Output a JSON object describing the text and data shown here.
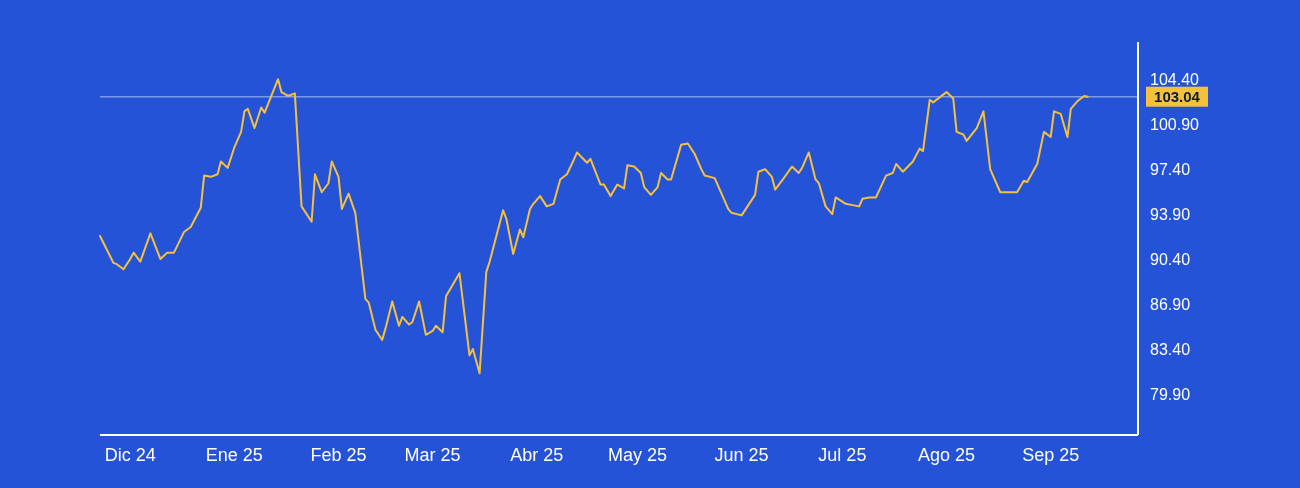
{
  "chart_data": {
    "type": "line",
    "x": [
      "2024-11-22",
      "2024-11-26",
      "2024-11-27",
      "2024-11-29",
      "2024-12-01",
      "2024-12-02",
      "2024-12-04",
      "2024-12-07",
      "2024-12-10",
      "2024-12-12",
      "2024-12-14",
      "2024-12-17",
      "2024-12-19",
      "2024-12-22",
      "2024-12-23",
      "2024-12-25",
      "2024-12-27",
      "2024-12-28",
      "2024-12-30",
      "2025-01-01",
      "2025-01-03",
      "2025-01-04",
      "2025-01-05",
      "2025-01-07",
      "2025-01-09",
      "2025-01-10",
      "2025-01-14",
      "2025-01-15",
      "2025-01-17",
      "2025-01-19",
      "2025-01-21",
      "2025-01-24",
      "2025-01-25",
      "2025-01-27",
      "2025-01-29",
      "2025-01-30",
      "2025-02-01",
      "2025-02-02",
      "2025-02-04",
      "2025-02-06",
      "2025-02-09",
      "2025-02-10",
      "2025-02-12",
      "2025-02-14",
      "2025-02-15",
      "2025-02-17",
      "2025-02-19",
      "2025-02-20",
      "2025-02-22",
      "2025-02-23",
      "2025-02-25",
      "2025-02-27",
      "2025-03-01",
      "2025-03-02",
      "2025-03-04",
      "2025-03-05",
      "2025-03-07",
      "2025-03-09",
      "2025-03-12",
      "2025-03-13",
      "2025-03-15",
      "2025-03-17",
      "2025-03-18",
      "2025-03-22",
      "2025-03-23",
      "2025-03-25",
      "2025-03-27",
      "2025-03-28",
      "2025-03-30",
      "2025-03-31",
      "2025-04-02",
      "2025-04-04",
      "2025-04-06",
      "2025-04-08",
      "2025-04-10",
      "2025-04-12",
      "2025-04-13",
      "2025-04-16",
      "2025-04-17",
      "2025-04-20",
      "2025-04-21",
      "2025-04-23",
      "2025-04-25",
      "2025-04-27",
      "2025-04-28",
      "2025-04-30",
      "2025-05-02",
      "2025-05-03",
      "2025-05-05",
      "2025-05-07",
      "2025-05-08",
      "2025-05-10",
      "2025-05-11",
      "2025-05-14",
      "2025-05-16",
      "2025-05-18",
      "2025-05-20",
      "2025-05-21",
      "2025-05-24",
      "2025-05-28",
      "2025-05-29",
      "2025-06-01",
      "2025-06-05",
      "2025-06-06",
      "2025-06-08",
      "2025-06-10",
      "2025-06-11",
      "2025-06-13",
      "2025-06-16",
      "2025-06-18",
      "2025-06-19",
      "2025-06-21",
      "2025-06-23",
      "2025-06-24",
      "2025-06-26",
      "2025-06-28",
      "2025-06-29",
      "2025-07-02",
      "2025-07-04",
      "2025-07-06",
      "2025-07-07",
      "2025-07-09",
      "2025-07-11",
      "2025-07-14",
      "2025-07-16",
      "2025-07-17",
      "2025-07-19",
      "2025-07-22",
      "2025-07-24",
      "2025-07-25",
      "2025-07-27",
      "2025-07-28",
      "2025-08-01",
      "2025-08-03",
      "2025-08-04",
      "2025-08-06",
      "2025-08-07",
      "2025-08-10",
      "2025-08-12",
      "2025-08-14",
      "2025-08-17",
      "2025-08-22",
      "2025-08-24",
      "2025-08-25",
      "2025-08-28",
      "2025-08-30",
      "2025-09-01",
      "2025-09-02",
      "2025-09-04",
      "2025-09-06",
      "2025-09-07",
      "2025-09-09",
      "2025-09-11",
      "2025-09-12"
    ],
    "series": [
      {
        "color": "#f5c13d",
        "values": [
          92.2,
          90.1,
          90.0,
          89.6,
          90.4,
          90.9,
          90.2,
          92.4,
          90.4,
          90.9,
          90.9,
          92.5,
          92.9,
          94.4,
          96.9,
          96.8,
          97.0,
          98.0,
          97.5,
          99.1,
          100.3,
          101.9,
          102.1,
          100.6,
          102.2,
          101.8,
          104.4,
          103.4,
          103.1,
          103.3,
          94.5,
          93.3,
          97.0,
          95.6,
          96.3,
          98.0,
          96.8,
          94.3,
          95.5,
          94.0,
          87.3,
          87.0,
          84.9,
          84.1,
          85.0,
          87.1,
          85.2,
          85.9,
          85.3,
          85.5,
          87.1,
          84.5,
          84.8,
          85.2,
          84.7,
          87.5,
          88.4,
          89.3,
          82.9,
          83.4,
          81.5,
          89.4,
          90.2,
          94.2,
          93.5,
          90.8,
          92.7,
          92.1,
          94.3,
          94.7,
          95.3,
          94.5,
          94.7,
          96.6,
          97.0,
          98.1,
          98.7,
          97.9,
          98.2,
          96.2,
          96.2,
          95.3,
          96.2,
          95.9,
          97.7,
          97.6,
          97.1,
          96.0,
          95.4,
          96.0,
          97.1,
          96.6,
          96.6,
          99.3,
          99.4,
          98.6,
          97.4,
          96.9,
          96.7,
          94.3,
          94.0,
          93.8,
          95.4,
          97.2,
          97.4,
          96.8,
          95.8,
          96.5,
          97.6,
          97.1,
          97.5,
          98.7,
          96.6,
          96.3,
          94.5,
          93.9,
          95.2,
          94.7,
          94.6,
          94.5,
          95.1,
          95.2,
          95.2,
          96.9,
          97.1,
          97.8,
          97.2,
          98.0,
          99.0,
          98.8,
          102.8,
          102.6,
          103.4,
          102.9,
          100.3,
          100.1,
          99.6,
          100.6,
          101.9,
          97.4,
          95.6,
          95.6,
          96.5,
          96.4,
          97.8,
          100.3,
          99.9,
          101.9,
          101.7,
          99.9,
          102.1,
          102.7,
          103.1,
          103.04
        ]
      }
    ],
    "xlim": [
      "2024-11-22",
      "2025-09-27"
    ],
    "xticks": [
      {
        "value": "2024-12-01",
        "label": "Dic 24"
      },
      {
        "value": "2025-01-01",
        "label": "Ene 25"
      },
      {
        "value": "2025-02-01",
        "label": "Feb 25"
      },
      {
        "value": "2025-03-01",
        "label": "Mar 25"
      },
      {
        "value": "2025-04-01",
        "label": "Abr 25"
      },
      {
        "value": "2025-05-01",
        "label": "May 25"
      },
      {
        "value": "2025-06-01",
        "label": "Jun 25"
      },
      {
        "value": "2025-07-01",
        "label": "Jul 25"
      },
      {
        "value": "2025-08-01",
        "label": "Ago 25"
      },
      {
        "value": "2025-09-01",
        "label": "Sep 25"
      }
    ],
    "ylim": [
      76.7,
      107.3
    ],
    "yticks": [
      {
        "value": 79.9,
        "label": "79.90"
      },
      {
        "value": 83.4,
        "label": "83.40"
      },
      {
        "value": 86.9,
        "label": "86.90"
      },
      {
        "value": 90.4,
        "label": "90.40"
      },
      {
        "value": 93.9,
        "label": "93.90"
      },
      {
        "value": 97.4,
        "label": "97.40"
      },
      {
        "value": 100.9,
        "label": "100.90"
      },
      {
        "value": 104.4,
        "label": "104.40"
      }
    ],
    "ref_lines": [
      {
        "axis": "y",
        "value": 103.04,
        "label": "103.04",
        "color": "#7b9af0"
      }
    ],
    "grid": false,
    "marker": "none",
    "line_style": "solid"
  }
}
